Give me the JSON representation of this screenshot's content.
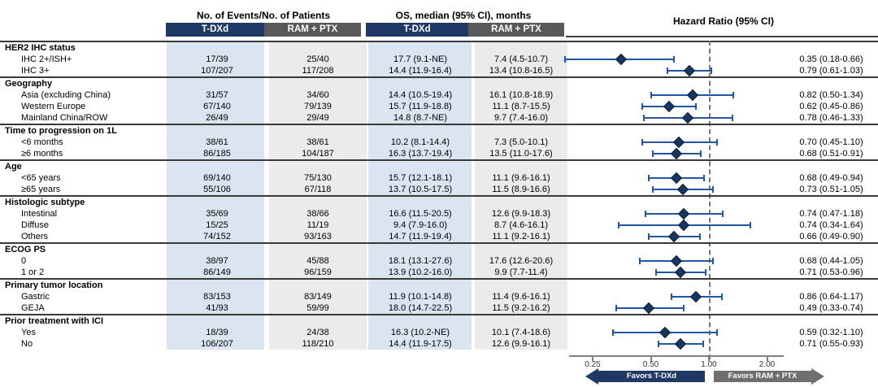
{
  "header": {
    "events_title": "No. of Events/No. of Patients",
    "os_title": "OS, median (95% CI), months",
    "hr_title": "Hazard Ratio (95% CI)",
    "col_tdxd": "T-DXd",
    "col_ram_ptx": "RAM + PTX"
  },
  "footer": {
    "favors_left": "Favors T-DXd",
    "favors_right": "Favors RAM + PTX"
  },
  "colors": {
    "navy": "#1f3864",
    "header_gray": "#595959",
    "light_blue_band": "#dbe5f1",
    "light_gray_band": "#ebebeb",
    "ci_bar_blue": "#2256a0",
    "diamond_navy": "#17375e",
    "arrow_gray": "#6f6f6f"
  },
  "chart_data": {
    "type": "forest",
    "x_axis": {
      "scale": "log",
      "reference_line": 1.0,
      "ticks": [
        {
          "value": 0.25,
          "label": "0.25"
        },
        {
          "value": 0.5,
          "label": "0.50"
        },
        {
          "value": 1.0,
          "label": "1.00"
        },
        {
          "value": 2.0,
          "label": "2.00"
        }
      ]
    },
    "groups": [
      {
        "label": "HER2 IHC status",
        "rows": [
          {
            "label": "IHC 2+/ISH+",
            "events_tdxd": "17/39",
            "events_ram_ptx": "25/40",
            "os_tdxd": "17.7 (9.1-NE)",
            "os_ram_ptx": "7.4 (4.5-10.7)",
            "hr": 0.35,
            "ci_low": 0.18,
            "ci_high": 0.66,
            "hr_text": "0.35 (0.18-0.66)"
          },
          {
            "label": "IHC 3+",
            "events_tdxd": "107/207",
            "events_ram_ptx": "117/208",
            "os_tdxd": "14.4 (11.9-16.4)",
            "os_ram_ptx": "13.4 (10.8-16.5)",
            "hr": 0.79,
            "ci_low": 0.61,
            "ci_high": 1.03,
            "hr_text": "0.79 (0.61-1.03)"
          }
        ]
      },
      {
        "label": "Geography",
        "rows": [
          {
            "label": "Asia (excluding China)",
            "events_tdxd": "31/57",
            "events_ram_ptx": "34/60",
            "os_tdxd": "14.4 (10.5-19.4)",
            "os_ram_ptx": "16.1 (10.8-18.9)",
            "hr": 0.82,
            "ci_low": 0.5,
            "ci_high": 1.34,
            "hr_text": "0.82 (0.50-1.34)"
          },
          {
            "label": "Western Europe",
            "events_tdxd": "67/140",
            "events_ram_ptx": "79/139",
            "os_tdxd": "15.7 (11.9-18.8)",
            "os_ram_ptx": "11.1 (8.7-15.5)",
            "hr": 0.62,
            "ci_low": 0.45,
            "ci_high": 0.86,
            "hr_text": "0.62 (0.45-0.86)"
          },
          {
            "label": "Mainland China/ROW",
            "events_tdxd": "26/49",
            "events_ram_ptx": "29/49",
            "os_tdxd": "14.8 (8.7-NE)",
            "os_ram_ptx": "9.7 (7.4-16.0)",
            "hr": 0.78,
            "ci_low": 0.46,
            "ci_high": 1.33,
            "hr_text": "0.78 (0.46-1.33)"
          }
        ]
      },
      {
        "label": "Time to progression on 1L",
        "rows": [
          {
            "label": "<6 months",
            "events_tdxd": "38/61",
            "events_ram_ptx": "38/61",
            "os_tdxd": "10.2 (8.1-14.4)",
            "os_ram_ptx": "7.3 (5.0-10.1)",
            "hr": 0.7,
            "ci_low": 0.45,
            "ci_high": 1.1,
            "hr_text": "0.70 (0.45-1.10)"
          },
          {
            "label": "≥6 months",
            "events_tdxd": "86/185",
            "events_ram_ptx": "104/187",
            "os_tdxd": "16.3 (13.7-19.4)",
            "os_ram_ptx": "13.5 (11.0-17.6)",
            "hr": 0.68,
            "ci_low": 0.51,
            "ci_high": 0.91,
            "hr_text": "0.68 (0.51-0.91)"
          }
        ]
      },
      {
        "label": "Age",
        "rows": [
          {
            "label": "<65 years",
            "events_tdxd": "69/140",
            "events_ram_ptx": "75/130",
            "os_tdxd": "15.7 (12.1-18.1)",
            "os_ram_ptx": "11.1 (9.6-16.1)",
            "hr": 0.68,
            "ci_low": 0.49,
            "ci_high": 0.94,
            "hr_text": "0.68 (0.49-0.94)"
          },
          {
            "label": "≥65 years",
            "events_tdxd": "55/106",
            "events_ram_ptx": "67/118",
            "os_tdxd": "13.7 (10.5-17.5)",
            "os_ram_ptx": "11.5 (8.9-16.6)",
            "hr": 0.73,
            "ci_low": 0.51,
            "ci_high": 1.05,
            "hr_text": "0.73 (0.51-1.05)"
          }
        ]
      },
      {
        "label": "Histologic subtype",
        "rows": [
          {
            "label": "Intestinal",
            "events_tdxd": "35/69",
            "events_ram_ptx": "38/66",
            "os_tdxd": "16.6 (11.5-20.5)",
            "os_ram_ptx": "12.6 (9.9-18.3)",
            "hr": 0.74,
            "ci_low": 0.47,
            "ci_high": 1.18,
            "hr_text": "0.74 (0.47-1.18)"
          },
          {
            "label": "Diffuse",
            "events_tdxd": "15/25",
            "events_ram_ptx": "11/19",
            "os_tdxd": "9.4 (7.9-16.0)",
            "os_ram_ptx": "8.7 (4.6-16.1)",
            "hr": 0.74,
            "ci_low": 0.34,
            "ci_high": 1.64,
            "hr_text": "0.74 (0.34-1.64)"
          },
          {
            "label": "Others",
            "events_tdxd": "74/152",
            "events_ram_ptx": "93/163",
            "os_tdxd": "14.7 (11.9-19.4)",
            "os_ram_ptx": "11.1 (9.2-16.1)",
            "hr": 0.66,
            "ci_low": 0.49,
            "ci_high": 0.9,
            "hr_text": "0.66 (0.49-0.90)"
          }
        ]
      },
      {
        "label": "ECOG PS",
        "rows": [
          {
            "label": "0",
            "events_tdxd": "38/97",
            "events_ram_ptx": "45/88",
            "os_tdxd": "18.1 (13.1-27.6)",
            "os_ram_ptx": "17.6 (12.6-20.6)",
            "hr": 0.68,
            "ci_low": 0.44,
            "ci_high": 1.05,
            "hr_text": "0.68 (0.44-1.05)"
          },
          {
            "label": "1 or 2",
            "events_tdxd": "86/149",
            "events_ram_ptx": "96/159",
            "os_tdxd": "13.9 (10.2-16.0)",
            "os_ram_ptx": "9.9 (7.7-11.4)",
            "hr": 0.71,
            "ci_low": 0.53,
            "ci_high": 0.96,
            "hr_text": "0.71 (0.53-0.96)"
          }
        ]
      },
      {
        "label": "Primary tumor location",
        "rows": [
          {
            "label": "Gastric",
            "events_tdxd": "83/153",
            "events_ram_ptx": "83/149",
            "os_tdxd": "11.9 (10.1-14.8)",
            "os_ram_ptx": "11.4 (9.6-16.1)",
            "hr": 0.86,
            "ci_low": 0.64,
            "ci_high": 1.17,
            "hr_text": "0.86 (0.64-1.17)"
          },
          {
            "label": "GEJA",
            "events_tdxd": "41/93",
            "events_ram_ptx": "59/99",
            "os_tdxd": "18.0 (14.7-22.5)",
            "os_ram_ptx": "11.5 (9.2-16.2)",
            "hr": 0.49,
            "ci_low": 0.33,
            "ci_high": 0.74,
            "hr_text": "0.49 (0.33-0.74)"
          }
        ]
      },
      {
        "label": "Prior treatment with ICI",
        "rows": [
          {
            "label": "Yes",
            "events_tdxd": "18/39",
            "events_ram_ptx": "24/38",
            "os_tdxd": "16.3 (10.2-NE)",
            "os_ram_ptx": "10.1 (7.4-18.6)",
            "hr": 0.59,
            "ci_low": 0.32,
            "ci_high": 1.1,
            "hr_text": "0.59 (0.32-1.10)"
          },
          {
            "label": "No",
            "events_tdxd": "106/207",
            "events_ram_ptx": "118/210",
            "os_tdxd": "14.4 (11.9-17.5)",
            "os_ram_ptx": "12.6 (9.9-16.1)",
            "hr": 0.71,
            "ci_low": 0.55,
            "ci_high": 0.93,
            "hr_text": "0.71 (0.55-0.93)"
          }
        ]
      }
    ]
  }
}
